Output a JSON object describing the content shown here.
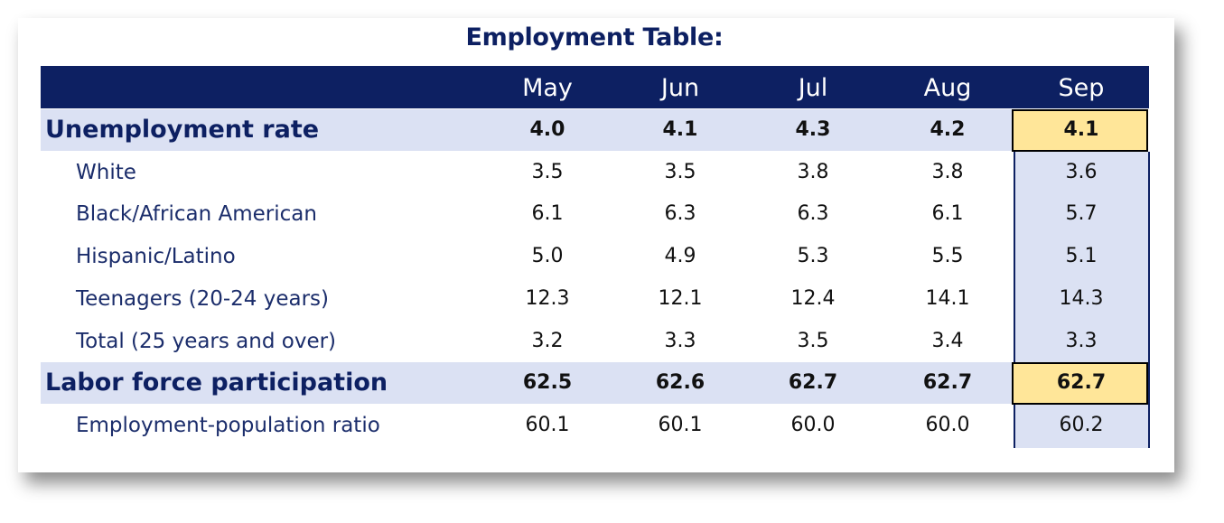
{
  "chart_data": {
    "type": "table",
    "title": "Employment Table:",
    "columns": [
      "May",
      "Jun",
      "Jul",
      "Aug",
      "Sep"
    ],
    "rows": [
      {
        "label": "Unemployment rate",
        "values": [
          "4.0",
          "4.1",
          "4.3",
          "4.2",
          "4.1"
        ],
        "bold": true
      },
      {
        "label": "White",
        "values": [
          "3.5",
          "3.5",
          "3.8",
          "3.8",
          "3.6"
        ]
      },
      {
        "label": "Black/African American",
        "values": [
          "6.1",
          "6.3",
          "6.3",
          "6.1",
          "5.7"
        ]
      },
      {
        "label": "Hispanic/Latino",
        "values": [
          "5.0",
          "4.9",
          "5.3",
          "5.5",
          "5.1"
        ]
      },
      {
        "label": "Teenagers (20-24 years)",
        "values": [
          "12.3",
          "12.1",
          "12.4",
          "14.1",
          "14.3"
        ]
      },
      {
        "label": "Total (25 years and over)",
        "values": [
          "3.2",
          "3.3",
          "3.5",
          "3.4",
          "3.3"
        ]
      },
      {
        "label": "Labor force participation",
        "values": [
          "62.5",
          "62.6",
          "62.7",
          "62.7",
          "62.7"
        ],
        "bold": true
      },
      {
        "label": "Employment-population ratio",
        "values": [
          "60.1",
          "60.1",
          "60.0",
          "60.0",
          "60.2"
        ]
      }
    ],
    "highlight_column": "Sep",
    "colors": {
      "header": "#0d2062",
      "band": "#dbe1f3",
      "highlight": "#ffe699",
      "label_text": "#1b2d6b"
    }
  }
}
